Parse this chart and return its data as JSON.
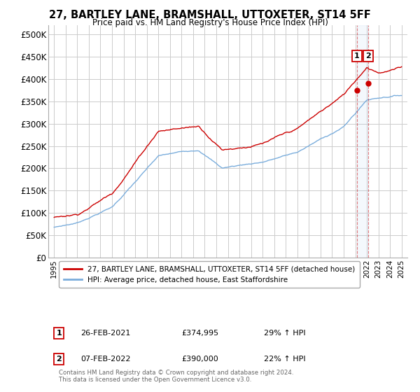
{
  "title": "27, BARTLEY LANE, BRAMSHALL, UTTOXETER, ST14 5FF",
  "subtitle": "Price paid vs. HM Land Registry's House Price Index (HPI)",
  "ylim": [
    0,
    520000
  ],
  "yticks": [
    0,
    50000,
    100000,
    150000,
    200000,
    250000,
    300000,
    350000,
    400000,
    450000,
    500000
  ],
  "ytick_labels": [
    "£0",
    "£50K",
    "£100K",
    "£150K",
    "£200K",
    "£250K",
    "£300K",
    "£350K",
    "£400K",
    "£450K",
    "£500K"
  ],
  "hpi_color": "#7aaddc",
  "price_color": "#cc0000",
  "vline_color": "#cc0000",
  "bg_color": "#ffffff",
  "grid_color": "#cccccc",
  "legend_label_price": "27, BARTLEY LANE, BRAMSHALL, UTTOXETER, ST14 5FF (detached house)",
  "legend_label_hpi": "HPI: Average price, detached house, East Staffordshire",
  "annotation1_label": "1",
  "annotation1_date": "26-FEB-2021",
  "annotation1_price": "£374,995",
  "annotation1_pct": "29% ↑ HPI",
  "annotation2_label": "2",
  "annotation2_date": "07-FEB-2022",
  "annotation2_price": "£390,000",
  "annotation2_pct": "22% ↑ HPI",
  "footer": "Contains HM Land Registry data © Crown copyright and database right 2024.\nThis data is licensed under the Open Government Licence v3.0.",
  "sale1_year": 2021.15,
  "sale2_year": 2022.1,
  "sale1_price": 374995,
  "sale2_price": 390000
}
